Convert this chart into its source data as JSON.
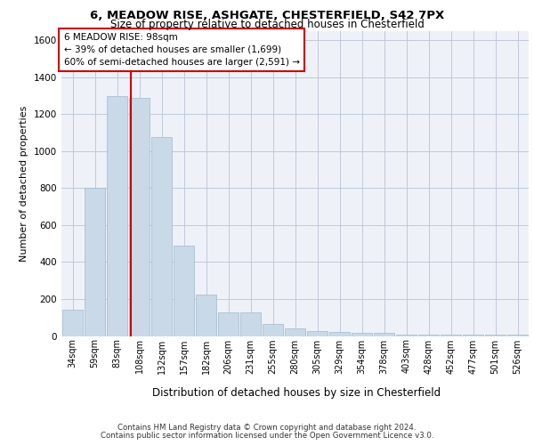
{
  "title_line1": "6, MEADOW RISE, ASHGATE, CHESTERFIELD, S42 7PX",
  "title_line2": "Size of property relative to detached houses in Chesterfield",
  "xlabel": "Distribution of detached houses by size in Chesterfield",
  "ylabel": "Number of detached properties",
  "footer_line1": "Contains HM Land Registry data © Crown copyright and database right 2024.",
  "footer_line2": "Contains public sector information licensed under the Open Government Licence v3.0.",
  "categories": [
    "34sqm",
    "59sqm",
    "83sqm",
    "108sqm",
    "132sqm",
    "157sqm",
    "182sqm",
    "206sqm",
    "231sqm",
    "255sqm",
    "280sqm",
    "305sqm",
    "329sqm",
    "354sqm",
    "378sqm",
    "403sqm",
    "428sqm",
    "452sqm",
    "477sqm",
    "501sqm",
    "526sqm"
  ],
  "bar_values": [
    140,
    800,
    1300,
    1290,
    1075,
    490,
    225,
    130,
    130,
    65,
    40,
    25,
    20,
    15,
    15,
    5,
    5,
    5,
    5,
    5,
    5
  ],
  "bar_color": "#c9d9e8",
  "bar_edge_color": "#a0b8cc",
  "grid_color": "#c0c8d8",
  "background_color": "#eef2f8",
  "ylim": [
    0,
    1650
  ],
  "yticks": [
    0,
    200,
    400,
    600,
    800,
    1000,
    1200,
    1400,
    1600
  ],
  "vline_color": "#cc0000",
  "annotation_line1": "6 MEADOW RISE: 98sqm",
  "annotation_line2": "← 39% of detached houses are smaller (1,699)",
  "annotation_line3": "60% of semi-detached houses are larger (2,591) →",
  "annotation_box_color": "#ffffff",
  "annotation_box_edge": "#cc0000"
}
